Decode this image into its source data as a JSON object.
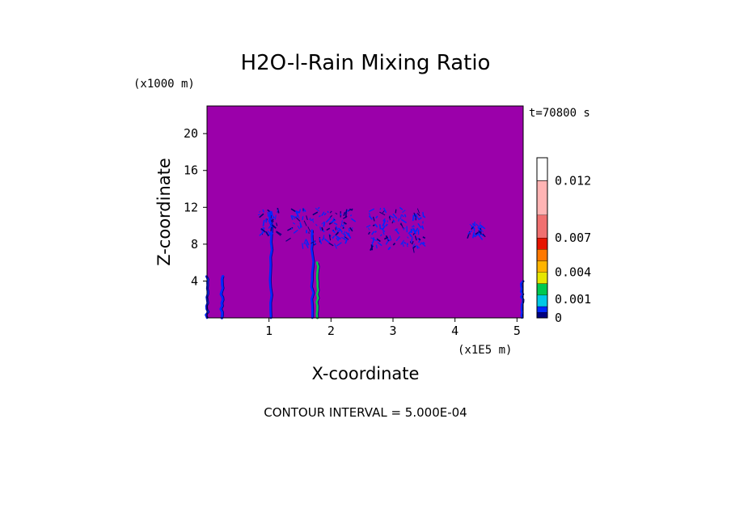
{
  "chart_data": {
    "type": "heatmap",
    "title": "H2O-l-Rain Mixing Ratio",
    "xlabel": "X-coordinate",
    "ylabel": "Z-coordinate",
    "x_unit": "(x1E5 m)",
    "y_unit": "(x1000 m)",
    "time_label": "t=70800 s",
    "contour_interval_label": "CONTOUR INTERVAL = 5.000E-04",
    "xlim": [
      0,
      5.1
    ],
    "ylim": [
      0,
      23
    ],
    "x_ticks": [
      1,
      2,
      3,
      4,
      5
    ],
    "y_ticks": [
      4,
      8,
      12,
      16,
      20
    ],
    "background_color": "#9b00aa",
    "colorbar": {
      "colors": [
        "#000080",
        "#0028ff",
        "#00c8e6",
        "#00c850",
        "#e6e600",
        "#ffb400",
        "#ff7800",
        "#e61400",
        "#f07070",
        "#ffb4b4"
      ],
      "tick_labels": [
        "0",
        "0.001",
        "0.004",
        "0.007",
        "0.012"
      ],
      "tick_values": [
        0,
        0.001,
        0.004,
        0.007,
        0.012
      ],
      "boundaries": [
        0,
        0.0005,
        0.001,
        0.002,
        0.003,
        0.004,
        0.005,
        0.006,
        0.007,
        0.009,
        0.012,
        0.014
      ]
    },
    "rain_features": [
      {
        "kind": "column",
        "x": 0.0,
        "z_bottom": 0,
        "z_top": 4.5,
        "level": 0.0008
      },
      {
        "kind": "column",
        "x": 0.24,
        "z_bottom": 0,
        "z_top": 4.5,
        "level": 0.0008
      },
      {
        "kind": "column",
        "x": 1.03,
        "z_bottom": 0,
        "z_top": 11.5,
        "level": 0.0009
      },
      {
        "kind": "column",
        "x": 1.7,
        "z_bottom": 0,
        "z_top": 9.5,
        "level": 0.0009
      },
      {
        "kind": "column",
        "x": 1.78,
        "z_bottom": 0,
        "z_top": 6.0,
        "level": 0.0022
      },
      {
        "kind": "column",
        "x": 5.08,
        "z_bottom": 0,
        "z_top": 4.0,
        "level": 0.0008
      },
      {
        "kind": "cloud",
        "x_min": 0.85,
        "x_max": 1.15,
        "z_min": 9.0,
        "z_max": 12.0,
        "level": 0.0009
      },
      {
        "kind": "cloud",
        "x_min": 1.35,
        "x_max": 2.35,
        "z_min": 8.0,
        "z_max": 12.0,
        "level": 0.0009
      },
      {
        "kind": "cloud",
        "x_min": 2.6,
        "x_max": 3.5,
        "z_min": 7.5,
        "z_max": 12.0,
        "level": 0.0009
      },
      {
        "kind": "cloud",
        "x_min": 4.2,
        "x_max": 4.45,
        "z_min": 9.0,
        "z_max": 10.5,
        "level": 0.0008
      }
    ]
  }
}
